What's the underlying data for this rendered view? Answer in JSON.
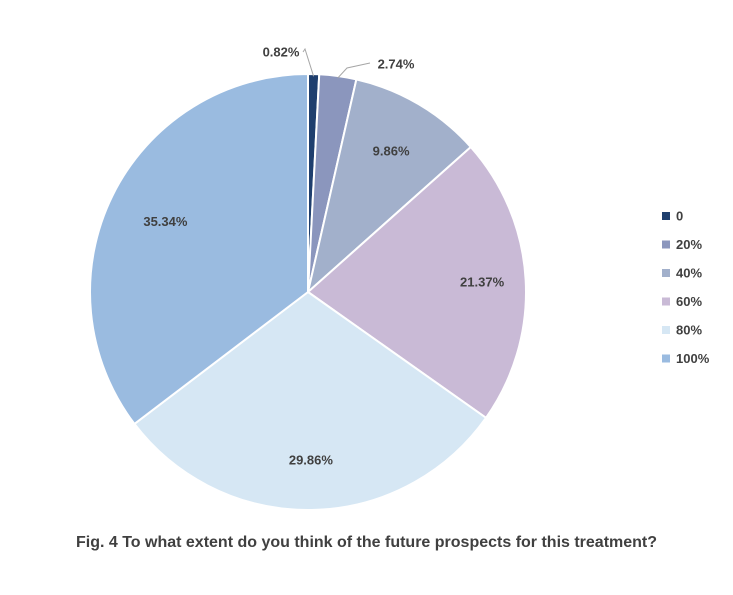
{
  "caption": "Fig. 4 To what extent do you think of the future prospects for this treatment?",
  "chart_data": {
    "type": "pie",
    "title": "",
    "categories": [
      "0",
      "20%",
      "40%",
      "60%",
      "80%",
      "100%"
    ],
    "values": [
      0.82,
      2.74,
      9.86,
      21.37,
      29.86,
      35.34
    ],
    "data_labels": [
      "0.82%",
      "2.74%",
      "9.86%",
      "21.37%",
      "29.86%",
      "35.34%"
    ],
    "colors": [
      "#1f3f6e",
      "#8b96bd",
      "#a2b0cb",
      "#c9bad6",
      "#d6e7f4",
      "#9abbe0"
    ],
    "legend_position": "right",
    "start_angle": "12 o'clock",
    "direction": "clockwise"
  }
}
